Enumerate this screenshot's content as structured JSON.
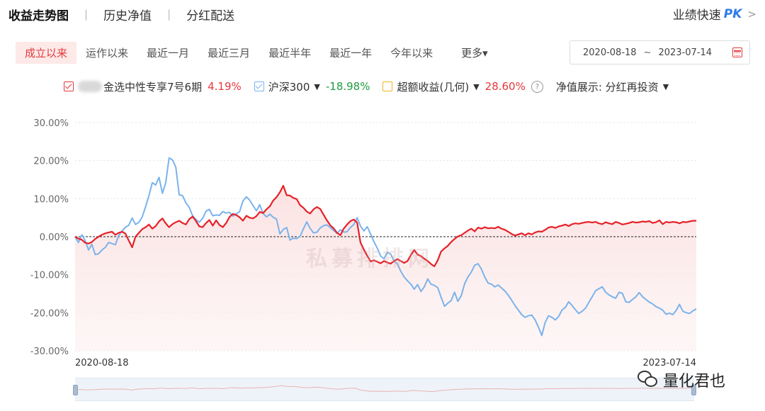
{
  "top_tabs": {
    "tab1": "收益走势图",
    "tab2": "历史净值",
    "tab3": "分红配送",
    "sep": "|",
    "pk_prefix": "业绩快速",
    "pk": "PK",
    "chevron": ">"
  },
  "periods": {
    "p1": "成立以来",
    "p2": "运作以来",
    "p3": "最近一月",
    "p4": "最近三月",
    "p5": "最近半年",
    "p6": "最近一年",
    "p7": "今年以来",
    "more": "更多▾"
  },
  "date_range": {
    "start": "2020-08-18",
    "tilde": "~",
    "end": "2023-07-14"
  },
  "legend": {
    "fund_name": "金选中性专享7号6期",
    "fund_value": "4.19%",
    "index_name": "沪深300",
    "index_value": "-18.98%",
    "excess_name": "超额收益(几何)",
    "excess_value": "28.60%",
    "help": "?",
    "nav_display": "净值展示: 分红再投资",
    "caret": "▼"
  },
  "watermark": "私募排排网",
  "wechat_label": "量化君也",
  "colors": {
    "fund": "#e62129",
    "index": "#7ab3ec",
    "area": "#fbe0e0",
    "positive": "#e4393c",
    "negative": "#1f9a3f"
  },
  "chart_data": {
    "type": "line",
    "y_tick_labels": [
      "30.00%",
      "20.00%",
      "10.00%",
      "0.00%",
      "-10.00%",
      "-20.00%",
      "-30.00%"
    ],
    "ylim": [
      -30,
      30
    ],
    "x_start_label": "2020-08-18",
    "x_end_label": "2023-07-14",
    "series": [
      {
        "name": "金选中性专享7号6期",
        "color": "#e62129",
        "values": [
          0,
          -0.5,
          -0.8,
          -1.6,
          -1.8,
          -1.4,
          -0.6,
          0,
          0.5,
          0.9,
          1.1,
          1.3,
          0.5,
          1,
          1.3,
          0.8,
          -1,
          -2.8,
          0,
          1,
          2,
          2.5,
          3.2,
          2.1,
          2.8,
          4,
          4.8,
          3.5,
          2.5,
          3.3,
          3.8,
          4.2,
          3.6,
          3.2,
          4.6,
          5.3,
          4.1,
          2.7,
          2.5,
          3.6,
          4.4,
          2.9,
          4.3,
          3.1,
          2.5,
          3.6,
          5.2,
          6,
          5.7,
          5.1,
          4.2,
          5.5,
          5,
          4.8,
          5.4,
          6.5,
          6.2,
          7.2,
          8,
          9.5,
          10.4,
          11.7,
          13.4,
          10.9,
          10.8,
          10.2,
          9.9,
          8.3,
          7.6,
          6.6,
          6.1,
          7.2,
          7.8,
          7.3,
          5.8,
          4.3,
          3,
          2.2,
          1,
          0.4,
          2.1,
          3.2,
          4.1,
          4.5,
          3.7,
          -1.5,
          -3.4,
          -5,
          -6.5,
          -6.2,
          -6.6,
          -7,
          -6.4,
          -6.8,
          -7.1,
          -6.4,
          -5.9,
          -6.4,
          -6.9,
          -6.4,
          -4.8,
          -3.5,
          -4.7,
          -5.1,
          -5.8,
          -6.4,
          -7.2,
          -7.8,
          -6.2,
          -3.9,
          -3.1,
          -2.4,
          -1.4,
          -0.6,
          0.1,
          0.4,
          1,
          1.6,
          2.1,
          1.4,
          2.4,
          2.1,
          2.5,
          2.2,
          2.3,
          2.2,
          2.6,
          2.1,
          1.8,
          1.3,
          0.7,
          0.3,
          0.6,
          0.9,
          0.4,
          0.9,
          0.6,
          1.1,
          1.4,
          1.3,
          1.8,
          2.4,
          2.6,
          2.3,
          2.7,
          2.9,
          3.2,
          2.8,
          3.3,
          3.5,
          3.4,
          3.6,
          3.8,
          3.9,
          3.7,
          3.9,
          3.5,
          3.3,
          3.8,
          3.5,
          3.3,
          3.9,
          3.6,
          3.2,
          3.4,
          3.6,
          3.9,
          3.7,
          3.8,
          4,
          3.9,
          4.1,
          3.6,
          3.8,
          4.3,
          3.3,
          3.9,
          3.7,
          3.9,
          3.8,
          3.5,
          3.9,
          3.8,
          4,
          4.2,
          4.19
        ]
      },
      {
        "name": "沪深300",
        "color": "#7ab3ec",
        "values": [
          0,
          -1.5,
          0.5,
          -1,
          -3.5,
          -2,
          -4.7,
          -4.5,
          -3.5,
          -2.8,
          -1.5,
          -1.8,
          -2.1,
          0.3,
          1.5,
          2.5,
          3,
          4.9,
          3.2,
          3.8,
          5.2,
          7.9,
          10.8,
          14.2,
          13.6,
          15.6,
          11.4,
          14.2,
          20.7,
          20.2,
          18.3,
          11,
          10.8,
          8.9,
          7.7,
          5.5,
          4.5,
          3.8,
          4.8,
          6.7,
          7.2,
          5.5,
          5.7,
          5.6,
          6.6,
          6.2,
          6.4,
          5.4,
          6,
          6.6,
          9.4,
          10.5,
          9.6,
          8.2,
          6.8,
          8.4,
          6.1,
          5.2,
          5.9,
          5.1,
          4.6,
          0.7,
          1.9,
          2.4,
          -0.9,
          -0.4,
          -0.5,
          0.1,
          2.1,
          3.9,
          2.2,
          1,
          1.2,
          2.3,
          2.9,
          3.1,
          2.4,
          1.6,
          0.9,
          1.8,
          1.2,
          1.3,
          2.4,
          3.2,
          5,
          2.8,
          1.5,
          2.6,
          0.7,
          -1.3,
          -3,
          -5.1,
          -5.8,
          -4.1,
          -4.6,
          -6.4,
          -7.2,
          -9.1,
          -10.6,
          -11.6,
          -12.5,
          -13.8,
          -12.6,
          -14.4,
          -13.2,
          -11.1,
          -12.5,
          -12.8,
          -13.4,
          -15.9,
          -18.3,
          -17.5,
          -16.8,
          -14.6,
          -17,
          -15.5,
          -12.4,
          -10.6,
          -9.3,
          -7.5,
          -7.1,
          -8.5,
          -10.6,
          -12.2,
          -12.5,
          -13.2,
          -12.7,
          -13.5,
          -14.3,
          -15.4,
          -16.7,
          -18.1,
          -19.3,
          -20.5,
          -21.2,
          -20.8,
          -20.6,
          -21.9,
          -23.8,
          -26,
          -22.5,
          -20.8,
          -21.2,
          -21.9,
          -21,
          -19.3,
          -18.6,
          -17.1,
          -18.1,
          -19.2,
          -20.2,
          -19.6,
          -18.8,
          -17.3,
          -15.8,
          -14.2,
          -13.7,
          -13.2,
          -14.6,
          -15.3,
          -15.8,
          -16.2,
          -14.6,
          -14.9,
          -17.1,
          -17.3,
          -16.5,
          -15.8,
          -14.7,
          -15.8,
          -16.5,
          -17.2,
          -17.7,
          -18.4,
          -18.8,
          -19.3,
          -20.4,
          -20.1,
          -20.5,
          -19.4,
          -17.8,
          -19.6,
          -20,
          -20.2,
          -19.5,
          -18.98
        ]
      }
    ],
    "zero_line": true,
    "grid": "horizontal-dotted",
    "legend_position": "top"
  }
}
